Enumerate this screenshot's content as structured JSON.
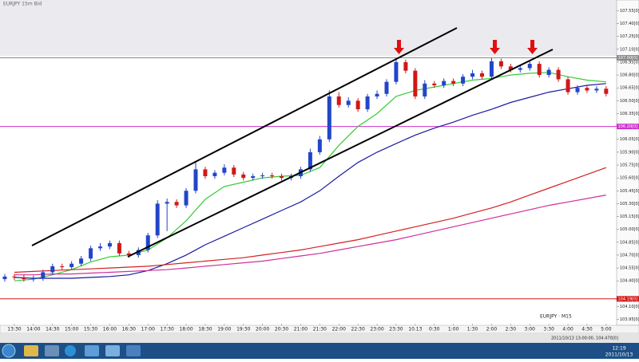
{
  "window": {
    "symbol": "EURJPY 15m Bid",
    "legend": "EURJPY · M15",
    "info": "2011/10/13 13:00:00, 104.470[0]"
  },
  "taskbar": {
    "time": "12:19",
    "date": "2011/10/13"
  },
  "chart_data": {
    "type": "candlestick",
    "categories": [
      "13:30",
      "14:00",
      "14:30",
      "15:00",
      "15:30",
      "16:00",
      "16:30",
      "17:00",
      "17:30",
      "18:00",
      "18:30",
      "19:00",
      "19:30",
      "20:00",
      "20:30",
      "21:00",
      "21:30",
      "22:00",
      "22:30",
      "23:00",
      "23:30",
      "10.13",
      "0:30",
      "1:00",
      "1:30",
      "2:00",
      "2:30",
      "3:00",
      "3:30",
      "4:00",
      "4:30",
      "5:00"
    ],
    "open": [
      104.42,
      104.45,
      104.44,
      104.42,
      104.43,
      104.5,
      104.57,
      104.56,
      104.6,
      104.66,
      104.78,
      104.8,
      104.84,
      104.72,
      104.7,
      104.76,
      104.93,
      105.3,
      105.32,
      105.28,
      105.45,
      105.7,
      105.62,
      105.66,
      105.72,
      105.64,
      105.6,
      105.62,
      105.63,
      105.62,
      105.6,
      105.62,
      105.7,
      105.9,
      106.05,
      106.55,
      106.45,
      106.5,
      106.4,
      106.55,
      106.58,
      106.72,
      106.95,
      106.85,
      106.55,
      106.7,
      106.68,
      106.73,
      106.7,
      106.78,
      106.82,
      106.78,
      106.96,
      106.9,
      106.86,
      106.88,
      106.93,
      106.8,
      106.86,
      106.75,
      106.6,
      106.65,
      106.62,
      106.64
    ],
    "high": [
      104.48,
      104.48,
      104.47,
      104.46,
      104.53,
      104.6,
      104.6,
      104.63,
      104.69,
      104.81,
      104.84,
      104.87,
      104.87,
      104.75,
      104.79,
      104.96,
      105.34,
      105.36,
      105.35,
      105.48,
      105.78,
      105.73,
      105.69,
      105.76,
      105.75,
      105.67,
      105.65,
      105.66,
      105.66,
      105.65,
      105.65,
      105.73,
      105.94,
      106.09,
      106.62,
      106.6,
      106.54,
      106.53,
      106.58,
      106.62,
      106.75,
      107.0,
      106.98,
      106.88,
      106.74,
      106.73,
      106.76,
      106.76,
      106.81,
      106.86,
      106.85,
      107.0,
      106.99,
      106.93,
      106.91,
      106.96,
      106.96,
      106.89,
      106.89,
      106.78,
      106.68,
      106.68,
      106.67,
      106.67
    ],
    "low": [
      104.39,
      104.41,
      104.39,
      104.39,
      104.4,
      104.47,
      104.53,
      104.53,
      104.57,
      104.63,
      104.75,
      104.77,
      104.69,
      104.67,
      104.67,
      104.73,
      104.9,
      104.98,
      105.25,
      105.25,
      105.42,
      105.59,
      105.59,
      105.63,
      105.61,
      105.57,
      105.57,
      105.59,
      105.59,
      105.57,
      105.57,
      105.59,
      105.67,
      105.87,
      106.02,
      106.42,
      106.42,
      106.37,
      106.37,
      106.52,
      106.55,
      106.69,
      106.82,
      106.52,
      106.52,
      106.65,
      106.65,
      106.67,
      106.67,
      106.75,
      106.75,
      106.75,
      106.87,
      106.83,
      106.83,
      106.85,
      106.77,
      106.77,
      106.72,
      106.57,
      106.57,
      106.59,
      106.59,
      106.55
    ],
    "close": [
      104.45,
      104.44,
      104.42,
      104.43,
      104.5,
      104.57,
      104.56,
      104.6,
      104.66,
      104.78,
      104.8,
      104.84,
      104.72,
      104.7,
      104.76,
      104.93,
      105.3,
      105.32,
      105.28,
      105.45,
      105.7,
      105.62,
      105.66,
      105.72,
      105.64,
      105.6,
      105.62,
      105.63,
      105.62,
      105.6,
      105.62,
      105.7,
      105.9,
      106.05,
      106.55,
      106.45,
      106.5,
      106.4,
      106.55,
      106.58,
      106.72,
      106.95,
      106.85,
      106.55,
      106.7,
      106.68,
      106.73,
      106.7,
      106.78,
      106.82,
      106.78,
      106.96,
      106.9,
      106.86,
      106.88,
      106.93,
      106.8,
      106.86,
      106.75,
      106.6,
      106.65,
      106.62,
      106.64,
      106.58
    ],
    "up_color": "#2146c8",
    "down_color": "#d01818",
    "series": [
      {
        "color": "#33cc33",
        "values": [
          104.4,
          104.42,
          104.47,
          104.53,
          104.62,
          104.68,
          104.7,
          104.76,
          104.9,
          105.1,
          105.35,
          105.5,
          105.55,
          105.6,
          105.62,
          105.63,
          105.72,
          105.98,
          106.2,
          106.35,
          106.55,
          106.62,
          106.66,
          106.7,
          106.74,
          106.76,
          106.8,
          106.82,
          106.83,
          106.78,
          106.74,
          106.72
        ]
      },
      {
        "color": "#1a1aa0",
        "values": [
          104.44,
          104.43,
          104.43,
          104.43,
          104.44,
          104.45,
          104.47,
          104.52,
          104.6,
          104.7,
          104.82,
          104.92,
          105.02,
          105.12,
          105.22,
          105.32,
          105.45,
          105.62,
          105.78,
          105.9,
          106.0,
          106.1,
          106.18,
          106.25,
          106.33,
          106.4,
          106.48,
          106.54,
          106.6,
          106.64,
          106.68,
          106.7
        ]
      },
      {
        "color": "#d42020",
        "values": [
          104.5,
          104.51,
          104.52,
          104.53,
          104.54,
          104.55,
          104.56,
          104.57,
          104.59,
          104.61,
          104.63,
          104.65,
          104.67,
          104.7,
          104.73,
          104.76,
          104.8,
          104.84,
          104.88,
          104.93,
          104.98,
          105.03,
          105.08,
          105.13,
          105.19,
          105.25,
          105.32,
          105.4,
          105.48,
          105.56,
          105.64,
          105.72
        ]
      },
      {
        "color": "#d0309a",
        "values": [
          104.47,
          104.47,
          104.48,
          104.48,
          104.49,
          104.5,
          104.51,
          104.52,
          104.53,
          104.55,
          104.57,
          104.59,
          104.61,
          104.63,
          104.66,
          104.69,
          104.72,
          104.76,
          104.8,
          104.84,
          104.88,
          104.93,
          104.98,
          105.03,
          105.08,
          105.13,
          105.18,
          105.23,
          105.28,
          105.32,
          105.36,
          105.4
        ]
      }
    ],
    "levels": [
      {
        "value": 107.0,
        "label": "107.00[0]",
        "color": "#8a8a8a"
      },
      {
        "value": 106.2,
        "label": "106.20[0]",
        "color": "#cc33cc"
      },
      {
        "value": 104.19,
        "label": "104.19[0]",
        "color": "#d01818"
      }
    ],
    "ylim": [
      103.9,
      107.6
    ],
    "yticks": [
      {
        "value": 107.55,
        "label": "107.55[0]"
      },
      {
        "value": 107.4,
        "label": "107.40[0]"
      },
      {
        "value": 107.25,
        "label": "107.25[0]"
      },
      {
        "value": 107.1,
        "label": "107.10[0]"
      },
      {
        "value": 106.95,
        "label": "106.95[0]"
      },
      {
        "value": 106.8,
        "label": "106.80[0]"
      },
      {
        "value": 106.65,
        "label": "106.65[0]"
      },
      {
        "value": 106.5,
        "label": "106.50[0]"
      },
      {
        "value": 106.35,
        "label": "106.35[0]"
      },
      {
        "value": 106.05,
        "label": "106.05[0]"
      },
      {
        "value": 105.9,
        "label": "105.90[0]"
      },
      {
        "value": 105.75,
        "label": "105.75[0]"
      },
      {
        "value": 105.6,
        "label": "105.60[0]"
      },
      {
        "value": 105.45,
        "label": "105.45[0]"
      },
      {
        "value": 105.3,
        "label": "105.30[0]"
      },
      {
        "value": 105.15,
        "label": "105.15[0]"
      },
      {
        "value": 105.0,
        "label": "105.00[0]"
      },
      {
        "value": 104.85,
        "label": "104.85[0]"
      },
      {
        "value": 104.7,
        "label": "104.70[0]"
      },
      {
        "value": 104.55,
        "label": "104.55[0]"
      },
      {
        "value": 104.4,
        "label": "104.40[0]"
      },
      {
        "value": 104.1,
        "label": "104.10[0]"
      },
      {
        "value": 103.95,
        "label": "103.95[0]"
      }
    ]
  }
}
